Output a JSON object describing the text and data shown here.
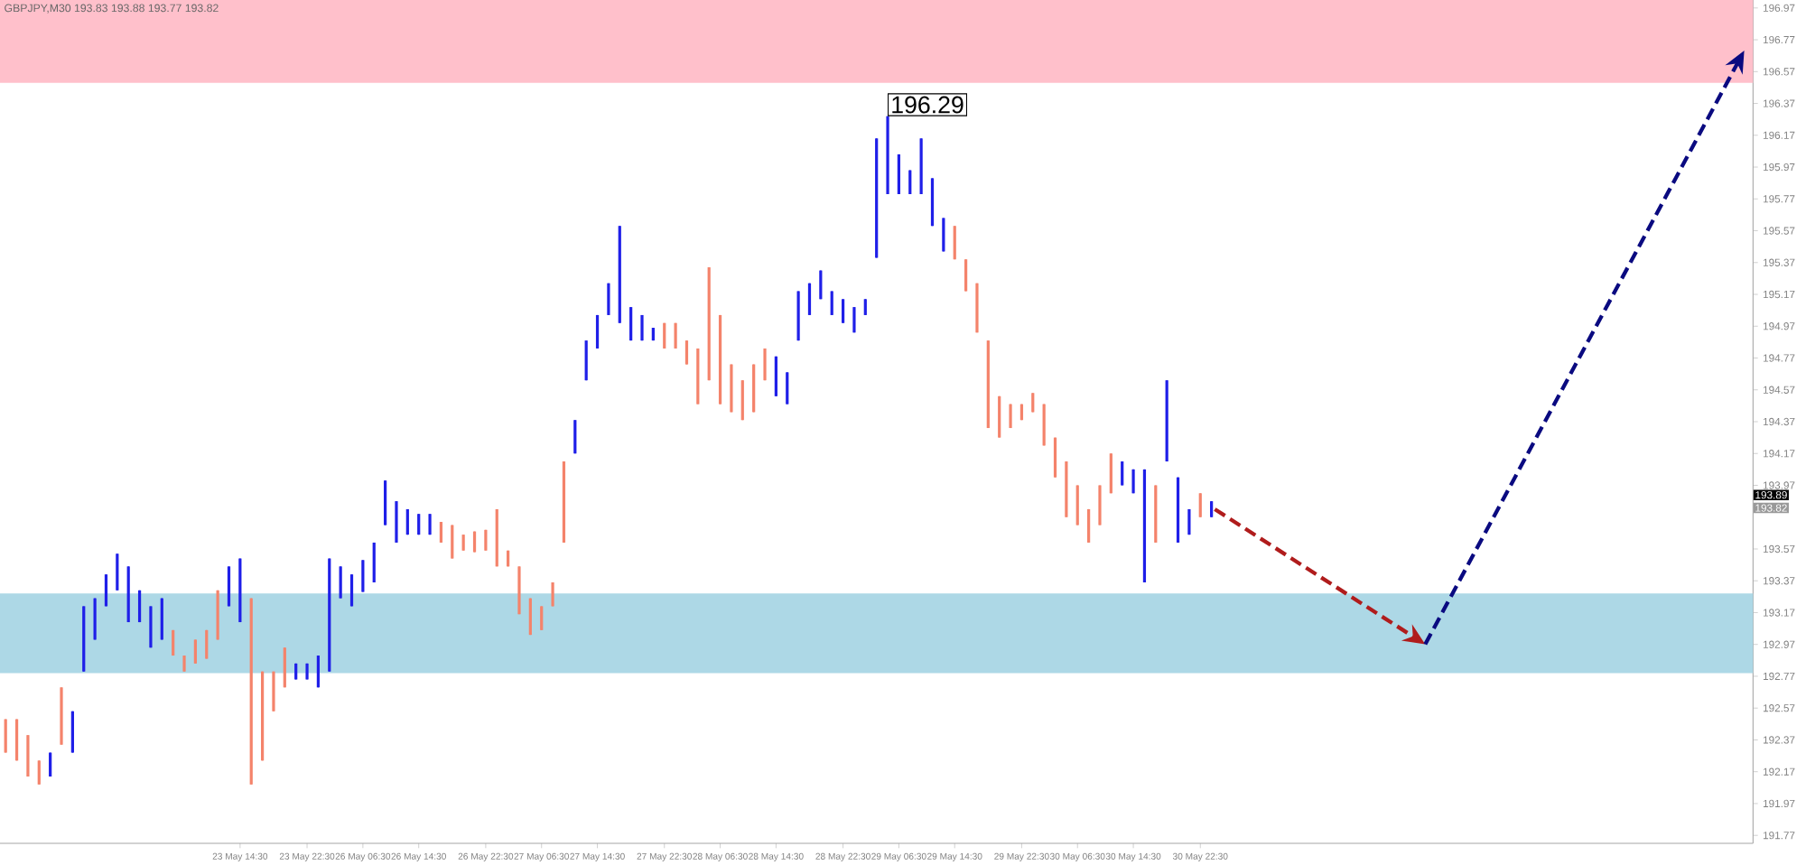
{
  "chart_data": {
    "type": "candlestick",
    "title": "GBPJPY,M30  193.83 193.88 193.77 193.82",
    "ylim": [
      191.72,
      197.02
    ],
    "yticks": [
      196.97,
      196.77,
      196.57,
      196.37,
      196.17,
      195.97,
      195.77,
      195.57,
      195.37,
      195.17,
      194.97,
      194.77,
      194.57,
      194.37,
      194.17,
      193.97,
      193.57,
      193.37,
      193.17,
      192.97,
      192.77,
      192.57,
      192.37,
      192.17,
      191.97,
      191.77
    ],
    "categories": [
      null,
      null,
      null,
      null,
      null,
      null,
      null,
      null,
      null,
      null,
      null,
      null,
      null,
      null,
      null,
      null,
      null,
      null,
      null,
      null,
      null,
      "23 May 14:30",
      null,
      null,
      null,
      null,
      null,
      "23 May 22:30",
      null,
      null,
      null,
      null,
      "26 May 06:30",
      null,
      null,
      null,
      null,
      "26 May 14:30",
      null,
      null,
      null,
      null,
      null,
      "26 May 22:30",
      null,
      null,
      null,
      null,
      "27 May 06:30",
      null,
      null,
      null,
      null,
      "27 May 14:30",
      null,
      null,
      null,
      null,
      null,
      "27 May 22:30",
      null,
      null,
      null,
      null,
      "28 May 06:30",
      null,
      null,
      null,
      null,
      "28 May 14:30",
      null,
      null,
      null,
      null,
      null,
      "28 May 22:30",
      null,
      null,
      null,
      null,
      "29 May 06:30",
      null,
      null,
      null,
      null,
      "29 May 14:30",
      null,
      null,
      null,
      null,
      null,
      "29 May 22:30",
      null,
      null,
      null,
      null,
      "30 May 06:30",
      null,
      null,
      null,
      null,
      "30 May 14:30",
      null,
      null,
      null,
      null,
      null,
      "30 May 22:30",
      null,
      null,
      null,
      null,
      null,
      null,
      null,
      null,
      null,
      null,
      null,
      null,
      null,
      null,
      null,
      null,
      null,
      null,
      null,
      null,
      null,
      null,
      null,
      null,
      null,
      null,
      null,
      null,
      null,
      null,
      null,
      null,
      null,
      null,
      null,
      null,
      null,
      null,
      null,
      null,
      null,
      null,
      null,
      null,
      null,
      null,
      null,
      null,
      null
    ],
    "bands": [
      {
        "axis": "y",
        "from": 196.5,
        "to": 197.02,
        "color": "#ffc0cb"
      },
      {
        "axis": "y",
        "from": 192.79,
        "to": 193.29,
        "color": "#add8e6"
      }
    ],
    "annotations": [
      "196.29",
      "193.89",
      "193.82"
    ],
    "colors": [
      "#f4836b",
      "#f4836b",
      "#f4836b",
      "#f4836b",
      "#1f1fe8",
      "#f4836b",
      "#1f1fe8",
      "#1f1fe8",
      "#1f1fe8",
      "#1f1fe8",
      "#1f1fe8",
      "#1f1fe8",
      "#1f1fe8",
      "#1f1fe8",
      "#1f1fe8",
      "#f4836b",
      "#f4836b",
      "#f4836b",
      "#f4836b",
      "#f4836b",
      "#1f1fe8",
      "#1f1fe8",
      "#f4836b",
      "#f4836b",
      "#f4836b",
      "#f4836b",
      "#1f1fe8",
      "#1f1fe8",
      "#1f1fe8",
      "#1f1fe8",
      "#1f1fe8",
      "#1f1fe8",
      "#1f1fe8",
      "#1f1fe8",
      "#1f1fe8",
      "#1f1fe8",
      "#1f1fe8",
      "#1f1fe8",
      "#1f1fe8",
      "#f4836b",
      "#f4836b",
      "#f4836b",
      "#f4836b",
      "#f4836b",
      "#f4836b",
      "#f4836b",
      "#f4836b",
      "#f4836b",
      "#f4836b",
      "#f4836b",
      "#f4836b",
      "#1f1fe8",
      "#1f1fe8",
      "#1f1fe8",
      "#1f1fe8",
      "#1f1fe8",
      "#1f1fe8",
      "#1f1fe8",
      "#1f1fe8",
      "#f4836b",
      "#f4836b",
      "#f4836b",
      "#f4836b",
      "#f4836b",
      "#f4836b",
      "#f4836b",
      "#f4836b",
      "#f4836b",
      "#f4836b",
      "#1f1fe8",
      "#1f1fe8",
      "#1f1fe8",
      "#1f1fe8",
      "#1f1fe8",
      "#1f1fe8",
      "#1f1fe8",
      "#1f1fe8",
      "#1f1fe8",
      "#1f1fe8",
      "#1f1fe8",
      "#1f1fe8",
      "#1f1fe8",
      "#1f1fe8",
      "#1f1fe8",
      "#1f1fe8",
      "#f4836b",
      "#f4836b",
      "#f4836b",
      "#f4836b",
      "#f4836b",
      "#f4836b",
      "#f4836b",
      "#f4836b",
      "#f4836b",
      "#f4836b",
      "#f4836b",
      "#f4836b",
      "#f4836b",
      "#f4836b",
      "#f4836b",
      "#1f1fe8",
      "#1f1fe8",
      "#1f1fe8",
      "#f4836b",
      "#1f1fe8",
      "#1f1fe8",
      "#1f1fe8",
      "#f4836b",
      "#1f1fe8",
      null,
      null,
      null,
      null,
      null,
      null,
      null,
      null,
      null,
      null,
      null,
      null,
      null,
      null,
      null,
      null,
      null,
      null,
      null,
      null,
      null,
      null,
      null,
      null,
      null,
      null,
      null,
      null,
      null,
      null,
      null,
      null,
      null,
      null,
      null,
      null,
      null,
      null,
      null,
      null,
      null,
      null,
      null,
      null,
      null,
      null,
      null,
      null
    ],
    "ohlc": [
      [
        192.5,
        192.5,
        192.29,
        192.29
      ],
      [
        192.5,
        192.5,
        192.24,
        192.24
      ],
      [
        192.4,
        192.4,
        192.14,
        192.14
      ],
      [
        192.24,
        192.24,
        192.09,
        192.09
      ],
      [
        192.14,
        192.29,
        192.14,
        192.29
      ],
      [
        192.7,
        192.7,
        192.34,
        192.34
      ],
      [
        192.29,
        192.55,
        192.29,
        192.55
      ],
      [
        192.8,
        193.21,
        192.8,
        193.21
      ],
      [
        193.0,
        193.26,
        193.0,
        193.26
      ],
      [
        193.21,
        193.41,
        193.21,
        193.41
      ],
      [
        193.31,
        193.54,
        193.31,
        193.54
      ],
      [
        193.11,
        193.46,
        193.11,
        193.46
      ],
      [
        193.11,
        193.31,
        193.11,
        193.31
      ],
      [
        192.95,
        193.21,
        192.95,
        193.21
      ],
      [
        193.0,
        193.26,
        193.0,
        193.26
      ],
      [
        193.06,
        193.06,
        192.9,
        192.9
      ],
      [
        192.9,
        192.9,
        192.8,
        192.8
      ],
      [
        193.0,
        193.0,
        192.85,
        192.85
      ],
      [
        193.06,
        193.06,
        192.88,
        192.88
      ],
      [
        193.31,
        193.31,
        193.0,
        193.0
      ],
      [
        193.21,
        193.46,
        193.21,
        193.46
      ],
      [
        193.11,
        193.51,
        193.11,
        193.51
      ],
      [
        193.26,
        193.26,
        192.09,
        192.09
      ],
      [
        192.8,
        192.8,
        192.24,
        192.24
      ],
      [
        192.8,
        192.8,
        192.55,
        192.55
      ],
      [
        192.95,
        192.95,
        192.7,
        192.7
      ],
      [
        192.75,
        192.85,
        192.75,
        192.85
      ],
      [
        192.75,
        192.85,
        192.75,
        192.85
      ],
      [
        192.7,
        192.9,
        192.7,
        192.9
      ],
      [
        192.8,
        193.51,
        192.8,
        193.51
      ],
      [
        193.26,
        193.46,
        193.26,
        193.46
      ],
      [
        193.21,
        193.41,
        193.21,
        193.41
      ],
      [
        193.3,
        193.5,
        193.3,
        193.5
      ],
      [
        193.36,
        193.61,
        193.36,
        193.61
      ],
      [
        193.72,
        194.0,
        193.72,
        194.0
      ],
      [
        193.61,
        193.87,
        193.61,
        193.87
      ],
      [
        193.66,
        193.82,
        193.66,
        193.82
      ],
      [
        193.66,
        193.79,
        193.66,
        193.79
      ],
      [
        193.66,
        193.79,
        193.66,
        193.79
      ],
      [
        193.74,
        193.74,
        193.61,
        193.61
      ],
      [
        193.72,
        193.72,
        193.51,
        193.51
      ],
      [
        193.66,
        193.66,
        193.56,
        193.56
      ],
      [
        193.68,
        193.68,
        193.55,
        193.55
      ],
      [
        193.69,
        193.69,
        193.56,
        193.56
      ],
      [
        193.82,
        193.82,
        193.46,
        193.46
      ],
      [
        193.56,
        193.56,
        193.46,
        193.46
      ],
      [
        193.46,
        193.46,
        193.16,
        193.16
      ],
      [
        193.26,
        193.26,
        193.03,
        193.03
      ],
      [
        193.21,
        193.21,
        193.06,
        193.06
      ],
      [
        193.36,
        193.36,
        193.21,
        193.21
      ],
      [
        194.12,
        194.12,
        193.61,
        193.61
      ],
      [
        194.17,
        194.38,
        194.17,
        194.38
      ],
      [
        194.63,
        194.88,
        194.63,
        194.88
      ],
      [
        194.83,
        195.04,
        194.83,
        195.04
      ],
      [
        195.04,
        195.24,
        195.04,
        195.24
      ],
      [
        194.99,
        195.6,
        194.99,
        195.6
      ],
      [
        194.88,
        195.09,
        194.88,
        195.09
      ],
      [
        194.88,
        195.04,
        194.88,
        195.04
      ],
      [
        194.88,
        194.96,
        194.88,
        194.96
      ],
      [
        194.99,
        194.99,
        194.83,
        194.83
      ],
      [
        194.99,
        194.99,
        194.83,
        194.83
      ],
      [
        194.88,
        194.88,
        194.73,
        194.73
      ],
      [
        194.83,
        194.83,
        194.48,
        194.48
      ],
      [
        195.34,
        195.34,
        194.63,
        194.63
      ],
      [
        195.04,
        195.04,
        194.48,
        194.48
      ],
      [
        194.73,
        194.73,
        194.43,
        194.43
      ],
      [
        194.63,
        194.63,
        194.38,
        194.38
      ],
      [
        194.73,
        194.73,
        194.43,
        194.43
      ],
      [
        194.83,
        194.83,
        194.63,
        194.63
      ],
      [
        194.53,
        194.78,
        194.53,
        194.78
      ],
      [
        194.48,
        194.68,
        194.48,
        194.68
      ],
      [
        194.88,
        195.19,
        194.88,
        195.19
      ],
      [
        195.04,
        195.24,
        195.04,
        195.24
      ],
      [
        195.14,
        195.32,
        195.14,
        195.32
      ],
      [
        195.04,
        195.19,
        195.04,
        195.19
      ],
      [
        194.99,
        195.14,
        194.99,
        195.14
      ],
      [
        194.93,
        195.09,
        194.93,
        195.09
      ],
      [
        195.04,
        195.14,
        195.04,
        195.14
      ],
      [
        195.4,
        196.15,
        195.4,
        196.15
      ],
      [
        195.8,
        196.29,
        195.8,
        196.29
      ],
      [
        195.8,
        196.05,
        195.8,
        196.05
      ],
      [
        195.8,
        195.95,
        195.8,
        195.95
      ],
      [
        195.8,
        196.15,
        195.8,
        196.15
      ],
      [
        195.6,
        195.9,
        195.6,
        195.9
      ],
      [
        195.44,
        195.65,
        195.44,
        195.65
      ],
      [
        195.6,
        195.6,
        195.39,
        195.39
      ],
      [
        195.39,
        195.39,
        195.19,
        195.19
      ],
      [
        195.24,
        195.24,
        194.93,
        194.93
      ],
      [
        194.88,
        194.88,
        194.33,
        194.33
      ],
      [
        194.53,
        194.53,
        194.27,
        194.27
      ],
      [
        194.48,
        194.48,
        194.33,
        194.33
      ],
      [
        194.48,
        194.48,
        194.38,
        194.38
      ],
      [
        194.55,
        194.55,
        194.43,
        194.43
      ],
      [
        194.48,
        194.48,
        194.22,
        194.22
      ],
      [
        194.27,
        194.27,
        194.02,
        194.02
      ],
      [
        194.12,
        194.12,
        193.77,
        193.77
      ],
      [
        193.97,
        193.97,
        193.72,
        193.72
      ],
      [
        193.82,
        193.82,
        193.61,
        193.61
      ],
      [
        193.97,
        193.97,
        193.72,
        193.72
      ],
      [
        194.17,
        194.17,
        193.92,
        193.92
      ],
      [
        193.97,
        194.12,
        193.97,
        194.12
      ],
      [
        193.92,
        194.07,
        193.92,
        194.07
      ],
      [
        193.36,
        194.07,
        193.36,
        194.07
      ],
      [
        193.97,
        193.97,
        193.61,
        193.61
      ],
      [
        194.12,
        194.63,
        194.12,
        194.63
      ],
      [
        193.61,
        194.02,
        193.61,
        194.02
      ],
      [
        193.66,
        193.82,
        193.66,
        193.82
      ],
      [
        193.92,
        193.92,
        193.77,
        193.77
      ],
      [
        193.77,
        193.87,
        193.77,
        193.87
      ],
      null,
      null,
      null,
      null,
      null,
      null,
      null,
      null,
      null,
      null,
      null,
      null,
      null,
      null,
      null,
      null,
      null,
      null,
      null,
      null,
      null,
      null,
      null,
      null,
      null,
      null,
      null,
      null,
      null,
      null,
      null,
      null,
      null,
      null,
      null,
      null,
      null,
      null,
      null,
      null,
      null,
      null,
      null,
      null,
      null,
      null,
      null,
      null
    ]
  }
}
